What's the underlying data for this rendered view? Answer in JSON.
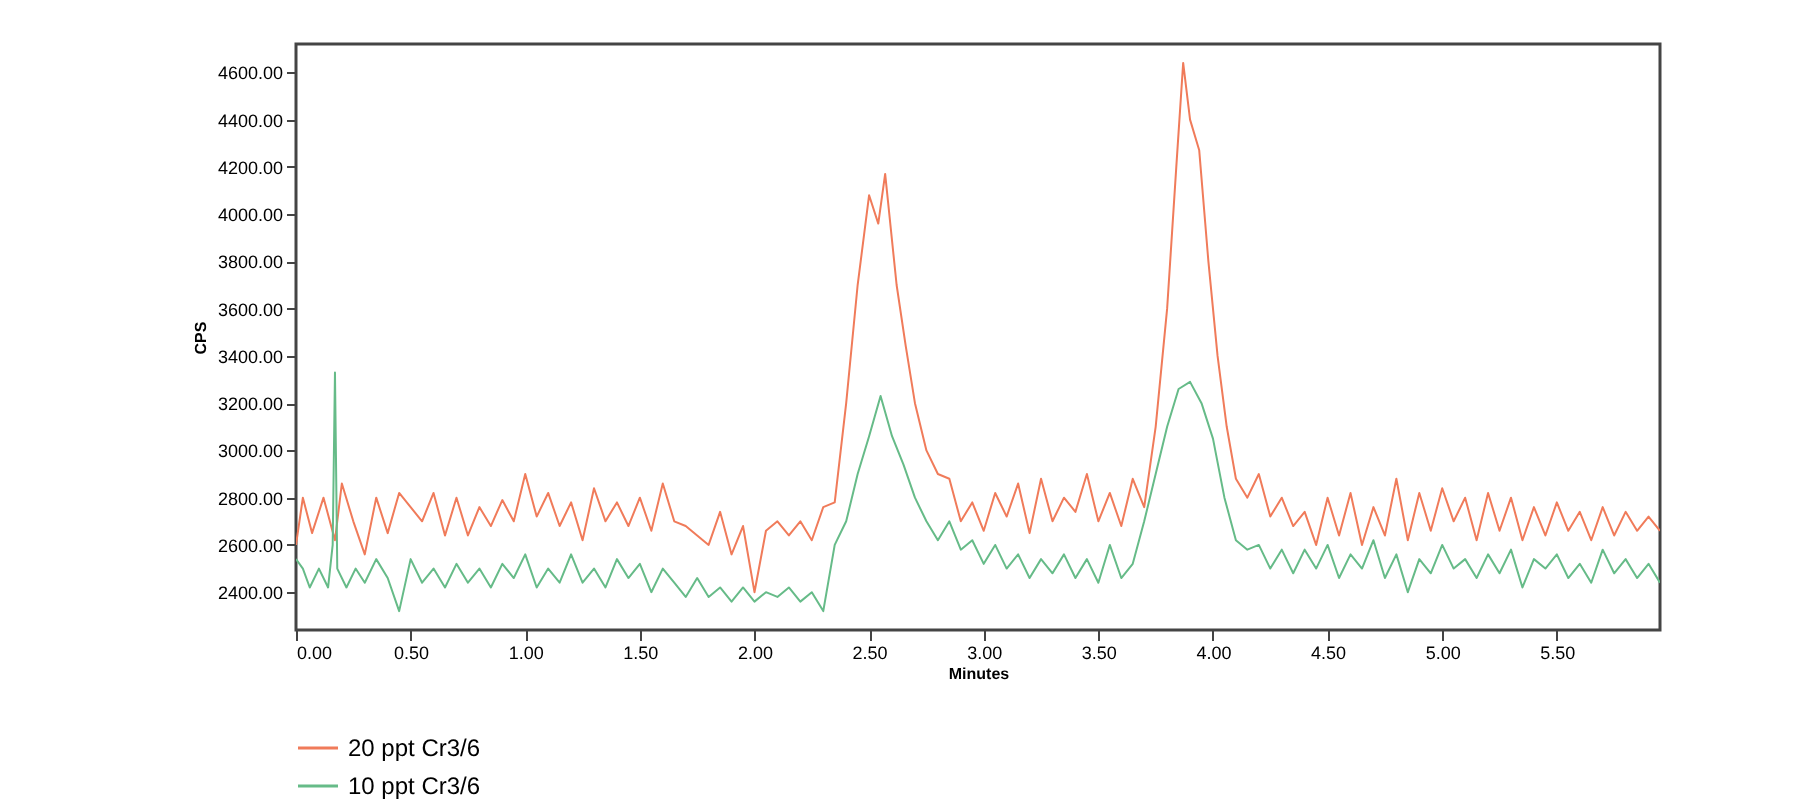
{
  "chart_data": {
    "type": "line",
    "xlabel": "Minutes",
    "ylabel": "CPS",
    "legend": "bottom",
    "xlim": [
      0,
      5.95
    ],
    "ylim": [
      2240,
      4720
    ],
    "xticks": [
      {
        "value": 0,
        "label": "0.00"
      },
      {
        "value": 0.5,
        "label": "0.50"
      },
      {
        "value": 1,
        "label": "1.00"
      },
      {
        "value": 1.5,
        "label": "1.50"
      },
      {
        "value": 2,
        "label": "2.00"
      },
      {
        "value": 2.5,
        "label": "2.50"
      },
      {
        "value": 3,
        "label": "3.00"
      },
      {
        "value": 3.5,
        "label": "3.50"
      },
      {
        "value": 4,
        "label": "4.00"
      },
      {
        "value": 4.5,
        "label": "4.50"
      },
      {
        "value": 5,
        "label": "5.00"
      },
      {
        "value": 5.5,
        "label": "5.50"
      }
    ],
    "yticks": [
      {
        "value": 2400,
        "label": "2400.00"
      },
      {
        "value": 2600,
        "label": "2600.00"
      },
      {
        "value": 2800,
        "label": "2800.00"
      },
      {
        "value": 3000,
        "label": "3000.00"
      },
      {
        "value": 3200,
        "label": "3200.00"
      },
      {
        "value": 3400,
        "label": "3400.00"
      },
      {
        "value": 3600,
        "label": "3600.00"
      },
      {
        "value": 3800,
        "label": "3800.00"
      },
      {
        "value": 4000,
        "label": "4000.00"
      },
      {
        "value": 4200,
        "label": "4200.00"
      },
      {
        "value": 4400,
        "label": "4400.00"
      },
      {
        "value": 4600,
        "label": "4600.00"
      }
    ],
    "series": [
      {
        "name": "20 ppt Cr3/6",
        "color": "#f07b5a",
        "x": [
          0,
          0.03,
          0.07,
          0.12,
          0.17,
          0.2,
          0.25,
          0.3,
          0.35,
          0.4,
          0.45,
          0.5,
          0.55,
          0.6,
          0.65,
          0.7,
          0.75,
          0.8,
          0.85,
          0.9,
          0.95,
          1,
          1.05,
          1.1,
          1.15,
          1.2,
          1.25,
          1.3,
          1.35,
          1.4,
          1.45,
          1.5,
          1.55,
          1.6,
          1.65,
          1.7,
          1.75,
          1.8,
          1.85,
          1.9,
          1.95,
          2,
          2.05,
          2.1,
          2.15,
          2.2,
          2.25,
          2.3,
          2.35,
          2.4,
          2.45,
          2.5,
          2.54,
          2.57,
          2.62,
          2.66,
          2.7,
          2.75,
          2.8,
          2.85,
          2.9,
          2.95,
          3,
          3.05,
          3.1,
          3.15,
          3.2,
          3.25,
          3.3,
          3.35,
          3.4,
          3.45,
          3.5,
          3.55,
          3.6,
          3.65,
          3.7,
          3.75,
          3.8,
          3.84,
          3.87,
          3.9,
          3.94,
          3.98,
          4.02,
          4.06,
          4.1,
          4.15,
          4.2,
          4.25,
          4.3,
          4.35,
          4.4,
          4.45,
          4.5,
          4.55,
          4.6,
          4.65,
          4.7,
          4.75,
          4.8,
          4.85,
          4.9,
          4.95,
          5,
          5.05,
          5.1,
          5.15,
          5.2,
          5.25,
          5.3,
          5.35,
          5.4,
          5.45,
          5.5,
          5.55,
          5.6,
          5.65,
          5.7,
          5.75,
          5.8,
          5.85,
          5.9,
          5.95
        ],
        "values": [
          2600,
          2800,
          2650,
          2800,
          2620,
          2860,
          2700,
          2560,
          2800,
          2650,
          2820,
          2760,
          2700,
          2820,
          2640,
          2800,
          2640,
          2760,
          2680,
          2790,
          2700,
          2900,
          2720,
          2820,
          2680,
          2780,
          2620,
          2840,
          2700,
          2780,
          2680,
          2800,
          2660,
          2860,
          2700,
          2680,
          2640,
          2600,
          2740,
          2560,
          2680,
          2400,
          2660,
          2700,
          2640,
          2700,
          2620,
          2760,
          2780,
          3200,
          3700,
          4080,
          3960,
          4170,
          3700,
          3440,
          3200,
          3000,
          2900,
          2880,
          2700,
          2780,
          2660,
          2820,
          2720,
          2860,
          2650,
          2880,
          2700,
          2800,
          2740,
          2900,
          2700,
          2820,
          2680,
          2880,
          2760,
          3100,
          3600,
          4200,
          4640,
          4400,
          4270,
          3800,
          3400,
          3100,
          2880,
          2800,
          2900,
          2720,
          2800,
          2680,
          2740,
          2600,
          2800,
          2640,
          2820,
          2600,
          2760,
          2640,
          2880,
          2620,
          2820,
          2660,
          2840,
          2700,
          2800,
          2620,
          2820,
          2660,
          2800,
          2620,
          2760,
          2640,
          2780,
          2660,
          2740,
          2620,
          2760,
          2640,
          2740,
          2660,
          2720,
          2660
        ]
      },
      {
        "name": "10 ppt Cr3/6",
        "color": "#66bb88",
        "x": [
          0,
          0.03,
          0.06,
          0.1,
          0.14,
          0.16,
          0.17,
          0.18,
          0.22,
          0.26,
          0.3,
          0.35,
          0.4,
          0.45,
          0.5,
          0.55,
          0.6,
          0.65,
          0.7,
          0.75,
          0.8,
          0.85,
          0.9,
          0.95,
          1,
          1.05,
          1.1,
          1.15,
          1.2,
          1.25,
          1.3,
          1.35,
          1.4,
          1.45,
          1.5,
          1.55,
          1.6,
          1.65,
          1.7,
          1.75,
          1.8,
          1.85,
          1.9,
          1.95,
          2,
          2.05,
          2.1,
          2.15,
          2.2,
          2.25,
          2.3,
          2.35,
          2.4,
          2.45,
          2.5,
          2.55,
          2.6,
          2.65,
          2.7,
          2.75,
          2.8,
          2.85,
          2.9,
          2.95,
          3,
          3.05,
          3.1,
          3.15,
          3.2,
          3.25,
          3.3,
          3.35,
          3.4,
          3.45,
          3.5,
          3.55,
          3.6,
          3.65,
          3.7,
          3.75,
          3.8,
          3.85,
          3.9,
          3.95,
          4,
          4.05,
          4.1,
          4.15,
          4.2,
          4.25,
          4.3,
          4.35,
          4.4,
          4.45,
          4.5,
          4.55,
          4.6,
          4.65,
          4.7,
          4.75,
          4.8,
          4.85,
          4.9,
          4.95,
          5,
          5.05,
          5.1,
          5.15,
          5.2,
          5.25,
          5.3,
          5.35,
          5.4,
          5.45,
          5.5,
          5.55,
          5.6,
          5.65,
          5.7,
          5.75,
          5.8,
          5.85,
          5.9,
          5.95
        ],
        "values": [
          2540,
          2500,
          2420,
          2500,
          2420,
          2600,
          3330,
          2500,
          2420,
          2500,
          2440,
          2540,
          2460,
          2320,
          2540,
          2440,
          2500,
          2420,
          2520,
          2440,
          2500,
          2420,
          2520,
          2460,
          2560,
          2420,
          2500,
          2440,
          2560,
          2440,
          2500,
          2420,
          2540,
          2460,
          2520,
          2400,
          2500,
          2440,
          2380,
          2460,
          2380,
          2420,
          2360,
          2420,
          2360,
          2400,
          2380,
          2420,
          2360,
          2400,
          2320,
          2600,
          2700,
          2900,
          3060,
          3230,
          3060,
          2940,
          2800,
          2700,
          2620,
          2700,
          2580,
          2620,
          2520,
          2600,
          2500,
          2560,
          2460,
          2540,
          2480,
          2560,
          2460,
          2540,
          2440,
          2600,
          2460,
          2520,
          2700,
          2900,
          3100,
          3260,
          3290,
          3200,
          3050,
          2800,
          2620,
          2580,
          2600,
          2500,
          2580,
          2480,
          2580,
          2500,
          2600,
          2460,
          2560,
          2500,
          2620,
          2460,
          2560,
          2400,
          2540,
          2480,
          2600,
          2500,
          2540,
          2460,
          2560,
          2480,
          2580,
          2420,
          2540,
          2500,
          2560,
          2460,
          2520,
          2440,
          2580,
          2480,
          2540,
          2460,
          2520,
          2440
        ]
      }
    ]
  }
}
